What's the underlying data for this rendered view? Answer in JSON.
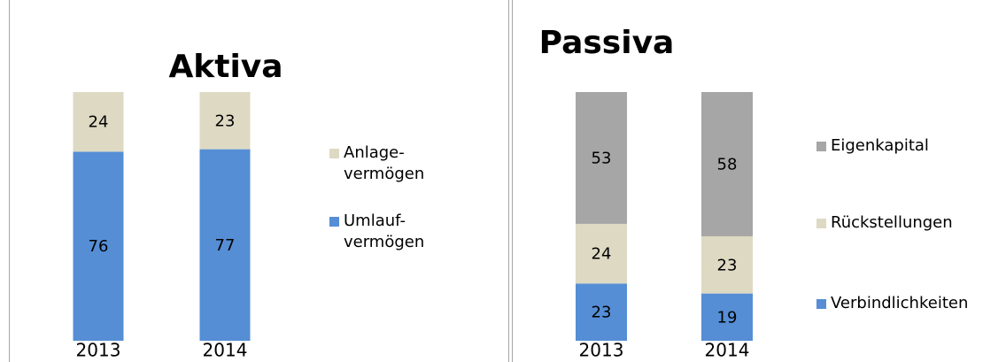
{
  "chart_data": [
    {
      "type": "bar",
      "stacked": true,
      "title": "Aktiva",
      "categories": [
        "2013",
        "2014"
      ],
      "ylim": [
        0,
        100
      ],
      "series": [
        {
          "name": "Umlauf-\nvermögen",
          "color": "#558ed5",
          "values": [
            76,
            77
          ]
        },
        {
          "name": "Anlage-\nvermögen",
          "color": "#ddd9c3",
          "values": [
            24,
            23
          ]
        }
      ]
    },
    {
      "type": "bar",
      "stacked": true,
      "title": "Passiva",
      "categories": [
        "2013",
        "2014"
      ],
      "ylim": [
        0,
        100
      ],
      "series": [
        {
          "name": "Verbindlichkeiten",
          "color": "#558ed5",
          "values": [
            23,
            19
          ]
        },
        {
          "name": "Rückstellungen",
          "color": "#ddd9c3",
          "values": [
            24,
            23
          ]
        },
        {
          "name": "Eigenkapital",
          "color": "#a6a6a6",
          "values": [
            53,
            58
          ]
        }
      ]
    }
  ]
}
